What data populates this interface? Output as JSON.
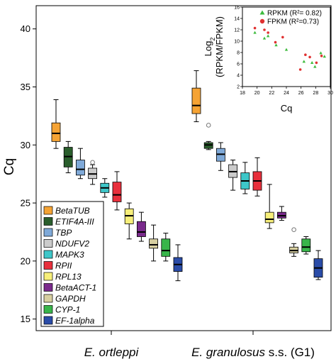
{
  "chart_data": [
    {
      "type": "box",
      "ylabel": "Cq",
      "ylim": [
        14,
        42
      ],
      "yticks": [
        15,
        20,
        25,
        30,
        35,
        40
      ],
      "groups": [
        {
          "name": "E. ortleppi",
          "italic": "E. ortleppi",
          "rest": ""
        },
        {
          "name": "E. granulosus s.s. (G1)",
          "italic": "E. granulosus",
          "rest": " s.s. (G1)"
        }
      ],
      "legend": [
        {
          "name": "BetaTUB",
          "color": "#f5a334"
        },
        {
          "name": "ETIF4A-III",
          "color": "#2a5e2c"
        },
        {
          "name": "TBP",
          "color": "#7fa9d8"
        },
        {
          "name": "NDUFV2",
          "color": "#cbcbcb"
        },
        {
          "name": "MAPK3",
          "color": "#3ec7c9"
        },
        {
          "name": "RPII",
          "color": "#e8303c"
        },
        {
          "name": "RPL13",
          "color": "#f7ef7a"
        },
        {
          "name": "BetaACT-1",
          "color": "#7a2a8c"
        },
        {
          "name": "GAPDH",
          "color": "#d7cfa0"
        },
        {
          "name": "CYP-1",
          "color": "#38b54a"
        },
        {
          "name": "EF-1alpha",
          "color": "#2a4ca8"
        }
      ],
      "boxes": {
        "E. ortleppi": [
          {
            "min": 29.7,
            "q1": 30.3,
            "median": 31.0,
            "q3": 31.9,
            "max": 33.9
          },
          {
            "min": 27.6,
            "q1": 28.1,
            "median": 29.0,
            "q3": 29.8,
            "max": 30.3
          },
          {
            "min": 27.1,
            "q1": 27.4,
            "median": 27.9,
            "q3": 28.7,
            "max": 29.7
          },
          {
            "min": 26.6,
            "q1": 27.1,
            "median": 27.5,
            "q3": 28.0,
            "max": 28.3,
            "outliers": [
              28.5
            ]
          },
          {
            "min": 25.5,
            "q1": 25.9,
            "median": 26.3,
            "q3": 26.7,
            "max": 27.1
          },
          {
            "min": 24.4,
            "q1": 25.1,
            "median": 25.7,
            "q3": 26.8,
            "max": 27.7
          },
          {
            "min": 21.9,
            "q1": 23.2,
            "median": 23.9,
            "q3": 24.5,
            "max": 25.0
          },
          {
            "min": 21.7,
            "q1": 22.1,
            "median": 22.5,
            "q3": 23.4,
            "max": 24.2
          },
          {
            "min": 20.0,
            "q1": 21.1,
            "median": 21.4,
            "q3": 21.9,
            "max": 23.1
          },
          {
            "min": 20.0,
            "q1": 20.4,
            "median": 20.9,
            "q3": 21.9,
            "max": 22.4
          },
          {
            "min": 18.3,
            "q1": 19.1,
            "median": 19.7,
            "q3": 20.3,
            "max": 21.4
          }
        ],
        "E. granulosus s.s. (G1)": [
          {
            "min": 32.0,
            "q1": 32.7,
            "median": 33.4,
            "q3": 34.9,
            "max": 36.4
          },
          {
            "min": 29.6,
            "q1": 29.7,
            "median": 30.0,
            "q3": 30.2,
            "max": 30.3,
            "outliers": [
              31.7
            ]
          },
          {
            "min": 27.8,
            "q1": 28.6,
            "median": 29.2,
            "q3": 29.7,
            "max": 30.2
          },
          {
            "min": 26.1,
            "q1": 27.2,
            "median": 27.7,
            "q3": 28.3,
            "max": 28.7
          },
          {
            "min": 25.8,
            "q1": 26.2,
            "median": 26.9,
            "q3": 27.6,
            "max": 28.5
          },
          {
            "min": 25.6,
            "q1": 26.1,
            "median": 26.9,
            "q3": 27.7,
            "max": 28.9
          },
          {
            "min": 22.8,
            "q1": 23.3,
            "median": 23.6,
            "q3": 24.2,
            "max": 26.6
          },
          {
            "min": 23.5,
            "q1": 23.7,
            "median": 23.9,
            "q3": 24.2,
            "max": 24.7
          },
          {
            "min": 20.4,
            "q1": 20.7,
            "median": 20.9,
            "q3": 21.2,
            "max": 21.5,
            "outliers": [
              22.7
            ]
          },
          {
            "min": 20.6,
            "q1": 20.8,
            "median": 21.2,
            "q3": 21.9,
            "max": 22.1
          },
          {
            "min": 18.4,
            "q1": 18.6,
            "median": 19.4,
            "q3": 20.2,
            "max": 20.9
          }
        ]
      }
    },
    {
      "type": "scatter",
      "xlabel": "Cq",
      "ylabel": "Log2 (RPKM/FPKM)",
      "ylabel_line1": "Log",
      "ylabel_sub": "2",
      "ylabel_line2": "(RPKM/FPKM)",
      "xlim": [
        18,
        30
      ],
      "xticks": [
        18,
        20,
        22,
        24,
        26,
        28,
        30
      ],
      "ylim": [
        2,
        16
      ],
      "yticks": [
        2,
        4,
        6,
        8,
        10,
        12,
        14,
        16
      ],
      "legend": "top-right",
      "series": [
        {
          "name": "RPKM (R²= 0.82)",
          "color": "#3dbb3d",
          "marker": "triangle",
          "points": [
            [
              19.7,
              11.5
            ],
            [
              21.0,
              10.5
            ],
            [
              21.5,
              10.9
            ],
            [
              22.6,
              9.3
            ],
            [
              24.0,
              8.5
            ],
            [
              26.4,
              6.4
            ],
            [
              27.5,
              6.2
            ],
            [
              27.9,
              5.5
            ],
            [
              28.7,
              7.9
            ],
            [
              29.2,
              7.3
            ]
          ]
        },
        {
          "name": "FPKM (R²=0.73)",
          "color": "#e03030",
          "marker": "circle",
          "points": [
            [
              19.7,
              12.3
            ],
            [
              21.0,
              12.0
            ],
            [
              21.5,
              11.5
            ],
            [
              22.5,
              9.8
            ],
            [
              23.5,
              10.7
            ],
            [
              25.9,
              5.0
            ],
            [
              26.6,
              7.6
            ],
            [
              27.2,
              7.2
            ],
            [
              28.1,
              6.2
            ],
            [
              28.8,
              7.4
            ]
          ]
        }
      ]
    }
  ]
}
